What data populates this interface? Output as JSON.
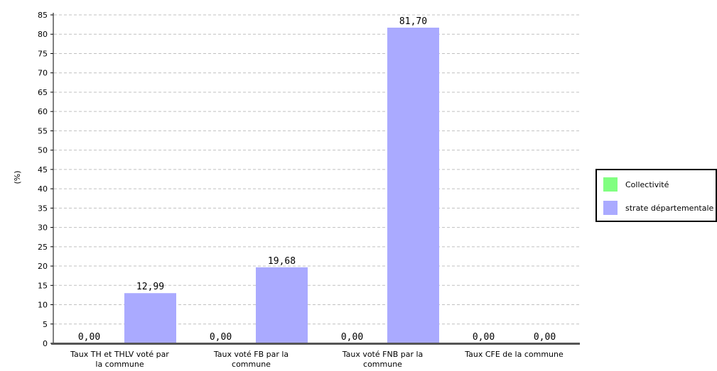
{
  "chart_data": {
    "type": "bar",
    "title": "",
    "xlabel": "",
    "ylabel": "(%)",
    "ylim": [
      0,
      85
    ],
    "ytick_step": 5,
    "grid": true,
    "legend_position": "right",
    "categories": [
      [
        "Taux TH et THLV voté par",
        "la commune"
      ],
      [
        "Taux voté FB par la",
        "commune"
      ],
      [
        "Taux voté FNB par la",
        "commune"
      ],
      [
        "Taux CFE de la commune"
      ]
    ],
    "series": [
      {
        "name": "Collectivité",
        "color": "#80ff80",
        "values": [
          0,
          0,
          0,
          0
        ],
        "labels": [
          "0,00",
          "0,00",
          "0,00",
          "0,00"
        ]
      },
      {
        "name": "strate départementale",
        "color": "#aaaaff",
        "values": [
          12.99,
          19.68,
          81.7,
          0
        ],
        "labels": [
          "12,99",
          "19,68",
          "81,70",
          "0,00"
        ]
      }
    ]
  }
}
